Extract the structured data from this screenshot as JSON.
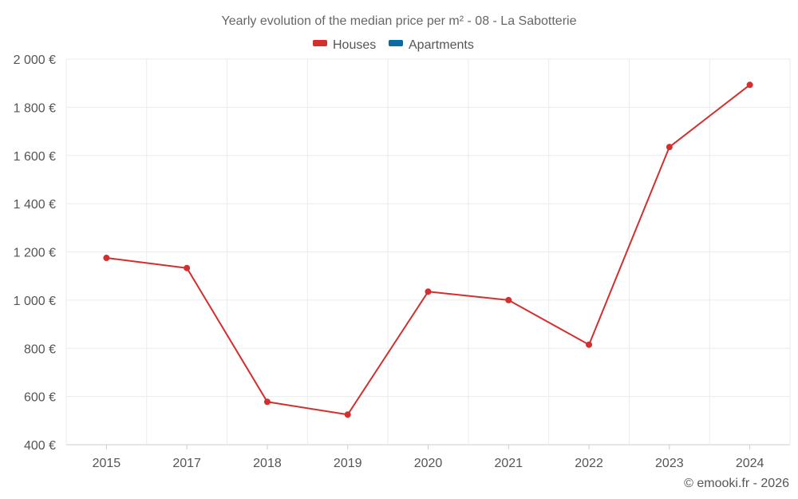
{
  "chart_data": {
    "type": "line",
    "title": "Yearly evolution of the median price per m² - 08 - La Sabotterie",
    "xlabel": "",
    "ylabel": "",
    "categories": [
      "2015",
      "2017",
      "2018",
      "2019",
      "2020",
      "2021",
      "2022",
      "2023",
      "2024"
    ],
    "ylim": [
      400,
      2000
    ],
    "yticks": [
      400,
      600,
      800,
      1000,
      1200,
      1400,
      1600,
      1800,
      2000
    ],
    "ytick_labels": [
      "400 €",
      "600 €",
      "800 €",
      "1 000 €",
      "1 200 €",
      "1 400 €",
      "1 600 €",
      "1 800 €",
      "2 000 €"
    ],
    "grid": true,
    "legend_position": "top-center",
    "legend": [
      {
        "name": "Houses",
        "color": "#d32f2f"
      },
      {
        "name": "Apartments",
        "color": "#0a6aa1"
      }
    ],
    "series": [
      {
        "name": "Houses",
        "color": "#d32f2f",
        "values": [
          1175,
          1133,
          578,
          525,
          1035,
          1000,
          815,
          1635,
          1893
        ]
      }
    ]
  },
  "credit": "© emooki.fr - 2026"
}
